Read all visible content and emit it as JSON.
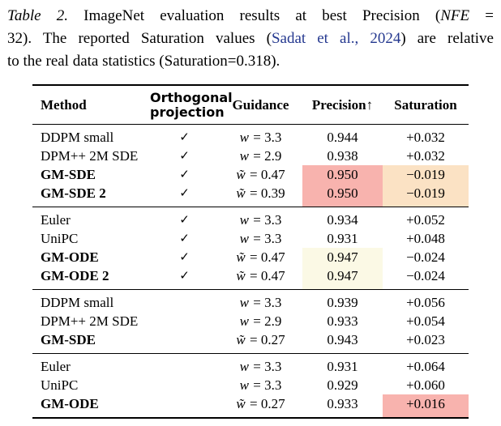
{
  "caption": {
    "line1": {
      "label": "Table 2.",
      "text": " ImageNet evaluation results at best Precision (",
      "nfe": "NFE",
      "tail": " ="
    },
    "line2": {
      "head": "32). The reported Saturation values (",
      "citation": "Sadat et al., 2024",
      "tail": ") are relative"
    },
    "line3": {
      "text": "to the real data statistics (Saturation=0.318)."
    }
  },
  "colors": {
    "citation_blue": "#24388f",
    "highlight_salmon": "#f8b3ae",
    "highlight_peach": "#fbe2c4",
    "highlight_cream": "#fbf9e5"
  },
  "table": {
    "headers": {
      "method": "Method",
      "orthogonal_line1": "Orthogonal",
      "orthogonal_line2": "projection",
      "guidance": "Guidance",
      "precision": "Precision↑",
      "saturation": "Saturation"
    },
    "checkmark": "✓",
    "groups": [
      {
        "rows": [
          {
            "method": "DDPM small",
            "bold": false,
            "check": true,
            "guidance_var": "w",
            "guidance_value": "3.3",
            "precision": "0.944",
            "precision_bg": null,
            "saturation": "+0.032",
            "saturation_bg": null
          },
          {
            "method": "DPM++ 2M SDE",
            "bold": false,
            "check": true,
            "guidance_var": "w",
            "guidance_value": "2.9",
            "precision": "0.938",
            "precision_bg": null,
            "saturation": "+0.032",
            "saturation_bg": null
          },
          {
            "method": "GM-SDE",
            "bold": true,
            "check": true,
            "guidance_var": "w̃",
            "guidance_value": "0.47",
            "precision": "0.950",
            "precision_bg": "salmon",
            "saturation": "−0.019",
            "saturation_bg": "peach"
          },
          {
            "method": "GM-SDE 2",
            "bold": true,
            "check": true,
            "guidance_var": "w̃",
            "guidance_value": "0.39",
            "precision": "0.950",
            "precision_bg": "salmon",
            "saturation": "−0.019",
            "saturation_bg": "peach"
          }
        ]
      },
      {
        "rows": [
          {
            "method": "Euler",
            "bold": false,
            "check": true,
            "guidance_var": "w",
            "guidance_value": "3.3",
            "precision": "0.934",
            "precision_bg": null,
            "saturation": "+0.052",
            "saturation_bg": null
          },
          {
            "method": "UniPC",
            "bold": false,
            "check": true,
            "guidance_var": "w",
            "guidance_value": "3.3",
            "precision": "0.931",
            "precision_bg": null,
            "saturation": "+0.048",
            "saturation_bg": null
          },
          {
            "method": "GM-ODE",
            "bold": true,
            "check": true,
            "guidance_var": "w̃",
            "guidance_value": "0.47",
            "precision": "0.947",
            "precision_bg": "cream",
            "saturation": "−0.024",
            "saturation_bg": null
          },
          {
            "method": "GM-ODE 2",
            "bold": true,
            "check": true,
            "guidance_var": "w̃",
            "guidance_value": "0.47",
            "precision": "0.947",
            "precision_bg": "cream",
            "saturation": "−0.024",
            "saturation_bg": null
          }
        ]
      },
      {
        "rows": [
          {
            "method": "DDPM small",
            "bold": false,
            "check": false,
            "guidance_var": "w",
            "guidance_value": "3.3",
            "precision": "0.939",
            "precision_bg": null,
            "saturation": "+0.056",
            "saturation_bg": null
          },
          {
            "method": "DPM++ 2M SDE",
            "bold": false,
            "check": false,
            "guidance_var": "w",
            "guidance_value": "2.9",
            "precision": "0.933",
            "precision_bg": null,
            "saturation": "+0.054",
            "saturation_bg": null
          },
          {
            "method": "GM-SDE",
            "bold": true,
            "check": false,
            "guidance_var": "w̃",
            "guidance_value": "0.27",
            "precision": "0.943",
            "precision_bg": null,
            "saturation": "+0.023",
            "saturation_bg": null
          }
        ]
      },
      {
        "rows": [
          {
            "method": "Euler",
            "bold": false,
            "check": false,
            "guidance_var": "w",
            "guidance_value": "3.3",
            "precision": "0.931",
            "precision_bg": null,
            "saturation": "+0.064",
            "saturation_bg": null
          },
          {
            "method": "UniPC",
            "bold": false,
            "check": false,
            "guidance_var": "w",
            "guidance_value": "3.3",
            "precision": "0.929",
            "precision_bg": null,
            "saturation": "+0.060",
            "saturation_bg": null
          },
          {
            "method": "GM-ODE",
            "bold": true,
            "check": false,
            "guidance_var": "w̃",
            "guidance_value": "0.27",
            "precision": "0.933",
            "precision_bg": null,
            "saturation": "+0.016",
            "saturation_bg": "salmon"
          }
        ]
      }
    ]
  }
}
